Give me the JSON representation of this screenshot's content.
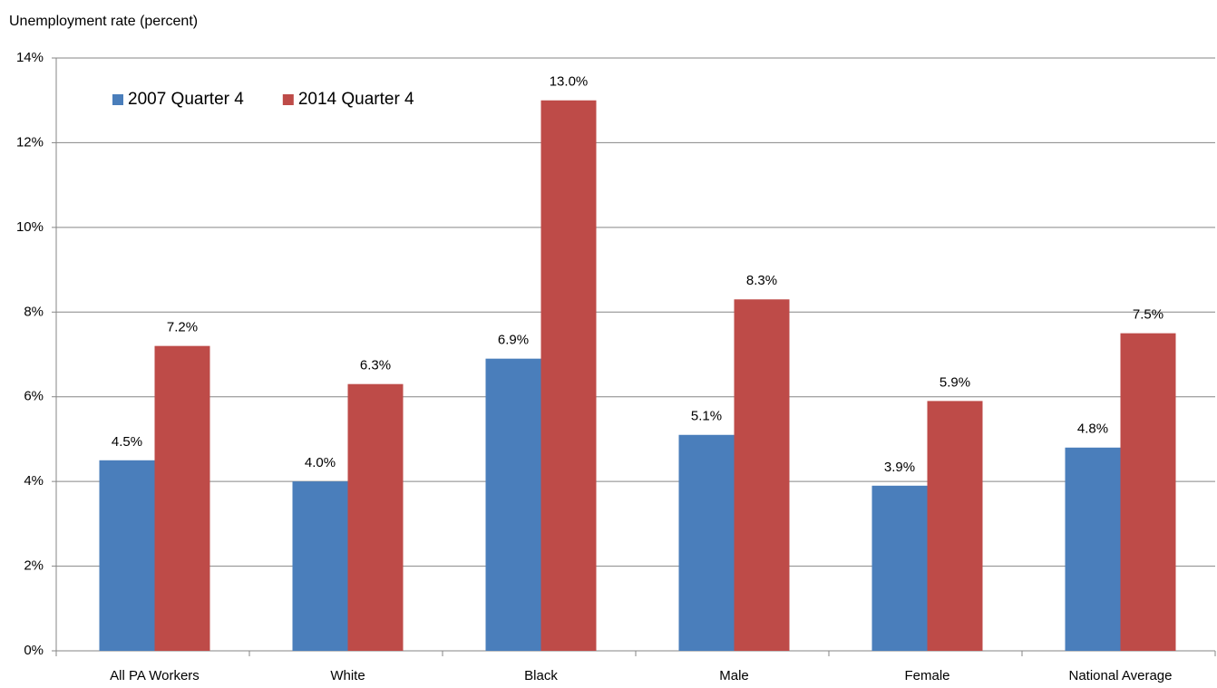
{
  "chart_data": {
    "type": "bar",
    "y_axis_label": "Unemployment rate (percent)",
    "categories": [
      "All PA Workers",
      "White",
      "Black",
      "Male",
      "Female",
      "National Average"
    ],
    "series": [
      {
        "name": "2007 Quarter 4",
        "color": "#4a7ebb",
        "values": [
          4.5,
          4.0,
          6.9,
          5.1,
          3.9,
          4.8
        ],
        "value_labels": [
          "4.5%",
          "4.0%",
          "6.9%",
          "5.1%",
          "3.9%",
          "4.8%"
        ]
      },
      {
        "name": "2014 Quarter 4",
        "color": "#be4b48",
        "values": [
          7.2,
          6.3,
          13.0,
          8.3,
          5.9,
          7.5
        ],
        "value_labels": [
          "7.2%",
          "6.3%",
          "13.0%",
          "8.3%",
          "5.9%",
          "7.5%"
        ]
      }
    ],
    "ylim": [
      0,
      14
    ],
    "yticks": [
      {
        "value": 0,
        "label": "0%"
      },
      {
        "value": 2,
        "label": "2%"
      },
      {
        "value": 4,
        "label": "4%"
      },
      {
        "value": 6,
        "label": "6%"
      },
      {
        "value": 8,
        "label": "8%"
      },
      {
        "value": 10,
        "label": "10%"
      },
      {
        "value": 12,
        "label": "12%"
      },
      {
        "value": 14,
        "label": "14%"
      }
    ],
    "grid": true,
    "legend": "top-left"
  }
}
